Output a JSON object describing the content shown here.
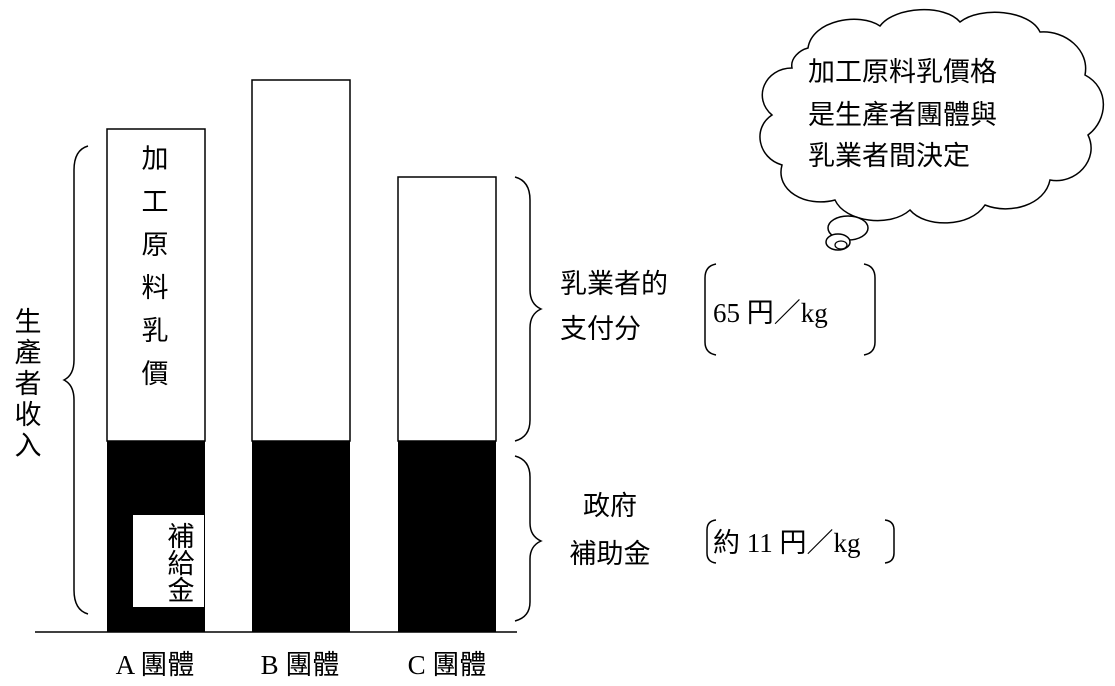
{
  "groups": [
    {
      "label": "A 團體"
    },
    {
      "label": "B 團體"
    },
    {
      "label": "C 團體"
    }
  ],
  "bar_a_upper_label": [
    "加",
    "工",
    "原",
    "料",
    "乳",
    "價"
  ],
  "bar_a_lower_label": [
    "補",
    "給",
    "金"
  ],
  "producer_income_label": [
    "生",
    "產",
    "者",
    "收",
    "入"
  ],
  "dairy_payment": {
    "label_line1": "乳業者的",
    "label_line2": "支付分",
    "amount": "65 円／kg"
  },
  "subsidy": {
    "label_line1": "政府",
    "label_line2": "補助金",
    "amount": "約 11 円／kg"
  },
  "thought_bubble": {
    "lines": [
      "加工原料乳價格",
      "是生產者團體與",
      "乳業者間決定"
    ]
  },
  "colors": {
    "subsidy_fill": "#000000",
    "price_fill": "#ffffff",
    "stroke": "#000000"
  }
}
